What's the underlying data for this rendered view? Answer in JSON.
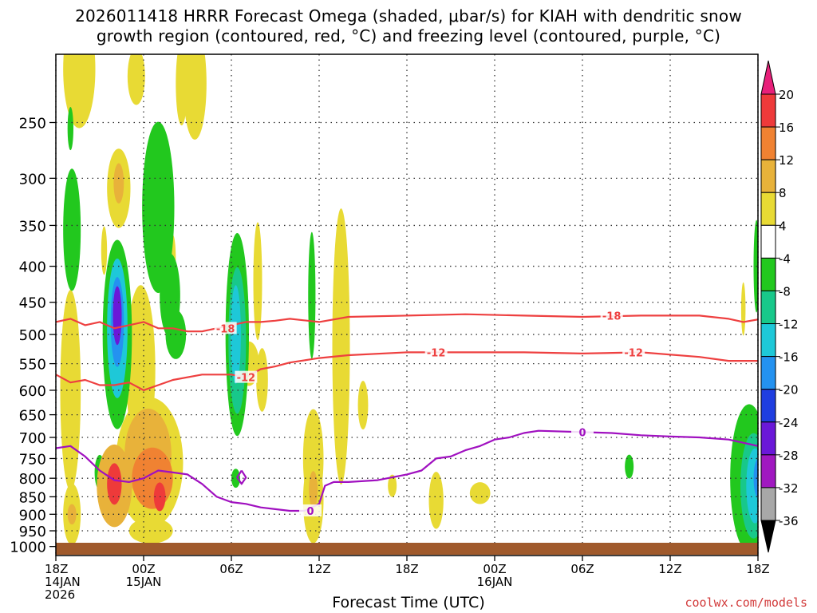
{
  "title_line1": "2026011418 HRRR Forecast Omega (shaded, μbar/s) for KIAH with dendritic snow",
  "title_line2": "growth region (contoured, red, °C) and freezing level (contoured, purple, °C)",
  "credit": "coolwx.com/models",
  "chart_data": {
    "type": "heatmap",
    "title": "2026011418 HRRR Forecast Omega (shaded, μbar/s) for KIAH with dendritic snow growth region (contoured, red, °C) and freezing level (contoured, purple, °C)",
    "xlabel": "Forecast Time (UTC)",
    "ylabel": "",
    "x_ticks": [
      {
        "hour": 0,
        "lines": [
          "18Z",
          "14JAN",
          "2026"
        ]
      },
      {
        "hour": 6,
        "lines": [
          "00Z",
          "15JAN"
        ]
      },
      {
        "hour": 12,
        "lines": [
          "06Z"
        ]
      },
      {
        "hour": 18,
        "lines": [
          "12Z"
        ]
      },
      {
        "hour": 24,
        "lines": [
          "18Z"
        ]
      },
      {
        "hour": 30,
        "lines": [
          "00Z",
          "16JAN"
        ]
      },
      {
        "hour": 36,
        "lines": [
          "06Z"
        ]
      },
      {
        "hour": 42,
        "lines": [
          "12Z"
        ]
      },
      {
        "hour": 48,
        "lines": [
          "18Z"
        ]
      }
    ],
    "x_range_hours": [
      0,
      48
    ],
    "y_ticks_hpa": [
      250,
      300,
      350,
      400,
      450,
      500,
      550,
      600,
      650,
      700,
      750,
      800,
      850,
      900,
      950,
      1000
    ],
    "y_range_hpa": [
      200,
      1030
    ],
    "colorbar": {
      "labels": [
        "20",
        "16",
        "12",
        "8",
        "4",
        "-4",
        "-8",
        "-12",
        "-16",
        "-20",
        "-24",
        "-28",
        "-32",
        "-36"
      ],
      "bins": [
        {
          "from": 20,
          "to": 99,
          "color": "#e8207a"
        },
        {
          "from": 16,
          "to": 20,
          "color": "#ee3a3a"
        },
        {
          "from": 12,
          "to": 16,
          "color": "#f08232"
        },
        {
          "from": 8,
          "to": 12,
          "color": "#e8b23a"
        },
        {
          "from": 4,
          "to": 8,
          "color": "#e8da34"
        },
        {
          "from": -4,
          "to": 4,
          "color": "#ffffff"
        },
        {
          "from": -8,
          "to": -4,
          "color": "#22c81e"
        },
        {
          "from": -12,
          "to": -8,
          "color": "#18c88a"
        },
        {
          "from": -16,
          "to": -12,
          "color": "#1ec8d8"
        },
        {
          "from": -20,
          "to": -16,
          "color": "#2492f0"
        },
        {
          "from": -24,
          "to": -20,
          "color": "#1f3ee0"
        },
        {
          "from": -28,
          "to": -24,
          "color": "#6a18d8"
        },
        {
          "from": -32,
          "to": -28,
          "color": "#a018c0"
        },
        {
          "from": -36,
          "to": -32,
          "color": "#a8a8a8"
        },
        {
          "from": -99,
          "to": -36,
          "color": "#000000"
        }
      ]
    },
    "omega_cells": [
      {
        "t": 1.6,
        "p": 210,
        "v": 5,
        "rx": 1.1,
        "rp": 40
      },
      {
        "t": 5.5,
        "p": 215,
        "v": 5,
        "rx": 0.6,
        "rp": 20
      },
      {
        "t": 1.0,
        "p": 255,
        "v": -5,
        "rx": 0.2,
        "rp": 18
      },
      {
        "t": 1.1,
        "p": 355,
        "v": -7,
        "rx": 0.6,
        "rp": 70
      },
      {
        "t": 4.3,
        "p": 310,
        "v": 6,
        "rx": 0.8,
        "rp": 40
      },
      {
        "t": 4.3,
        "p": 305,
        "v": 9,
        "rx": 0.35,
        "rp": 20
      },
      {
        "t": 7.0,
        "p": 330,
        "v": -6,
        "rx": 1.1,
        "rp": 90
      },
      {
        "t": 7.8,
        "p": 440,
        "v": -6,
        "rx": 0.7,
        "rp": 60
      },
      {
        "t": 8.2,
        "p": 500,
        "v": -6,
        "rx": 0.7,
        "rp": 40
      },
      {
        "t": 3.3,
        "p": 380,
        "v": 5,
        "rx": 0.2,
        "rp": 30
      },
      {
        "t": 9.5,
        "p": 220,
        "v": 5,
        "rx": 0.8,
        "rp": 40
      },
      {
        "t": 8.0,
        "p": 390,
        "v": 5,
        "rx": 0.2,
        "rp": 30
      },
      {
        "t": 4.2,
        "p": 500,
        "v": -8,
        "rx": 1.0,
        "rp": 150
      },
      {
        "t": 4.2,
        "p": 490,
        "v": -14,
        "rx": 0.7,
        "rp": 110
      },
      {
        "t": 4.2,
        "p": 480,
        "v": -20,
        "rx": 0.45,
        "rp": 70
      },
      {
        "t": 4.2,
        "p": 470,
        "v": -27,
        "rx": 0.3,
        "rp": 45
      },
      {
        "t": 1.0,
        "p": 600,
        "v": 6,
        "rx": 0.7,
        "rp": 190
      },
      {
        "t": 5.8,
        "p": 560,
        "v": 6,
        "rx": 1.0,
        "rp": 150
      },
      {
        "t": 6.4,
        "p": 760,
        "v": 7,
        "rx": 2.3,
        "rp": 160
      },
      {
        "t": 6.3,
        "p": 740,
        "v": 11,
        "rx": 1.6,
        "rp": 110
      },
      {
        "t": 6.6,
        "p": 800,
        "v": 14,
        "rx": 1.4,
        "rp": 80
      },
      {
        "t": 4.0,
        "p": 820,
        "v": 10,
        "rx": 1.2,
        "rp": 110
      },
      {
        "t": 4.0,
        "p": 815,
        "v": 18,
        "rx": 0.5,
        "rp": 55
      },
      {
        "t": 7.1,
        "p": 850,
        "v": 17,
        "rx": 0.4,
        "rp": 40
      },
      {
        "t": 3.0,
        "p": 785,
        "v": -8,
        "rx": 0.35,
        "rp": 45
      },
      {
        "t": 1.1,
        "p": 900,
        "v": 6,
        "rx": 0.6,
        "rp": 90
      },
      {
        "t": 1.1,
        "p": 900,
        "v": 10,
        "rx": 0.3,
        "rp": 30
      },
      {
        "t": 6.5,
        "p": 950,
        "v": 5,
        "rx": 1.5,
        "rp": 40
      },
      {
        "t": 12.4,
        "p": 500,
        "v": -6,
        "rx": 0.8,
        "rp": 160
      },
      {
        "t": 12.4,
        "p": 510,
        "v": -11,
        "rx": 0.6,
        "rp": 120
      },
      {
        "t": 12.3,
        "p": 500,
        "v": -15,
        "rx": 0.35,
        "rp": 80
      },
      {
        "t": 13.2,
        "p": 550,
        "v": 5,
        "rx": 0.7,
        "rp": 40
      },
      {
        "t": 14.1,
        "p": 580,
        "v": 5,
        "rx": 0.4,
        "rp": 60
      },
      {
        "t": 13.8,
        "p": 420,
        "v": 5,
        "rx": 0.3,
        "rp": 80
      },
      {
        "t": 12.3,
        "p": 800,
        "v": -5,
        "rx": 0.3,
        "rp": 25
      },
      {
        "t": 8.6,
        "p": 220,
        "v": 5,
        "rx": 0.4,
        "rp": 30
      },
      {
        "t": 17.5,
        "p": 440,
        "v": -6,
        "rx": 0.25,
        "rp": 90
      },
      {
        "t": 19.5,
        "p": 520,
        "v": 5,
        "rx": 0.6,
        "rp": 220
      },
      {
        "t": 17.6,
        "p": 750,
        "v": 5,
        "rx": 0.7,
        "rp": 120
      },
      {
        "t": 17.6,
        "p": 860,
        "v": 5,
        "rx": 0.7,
        "rp": 120
      },
      {
        "t": 17.6,
        "p": 830,
        "v": 10,
        "rx": 0.3,
        "rp": 50
      },
      {
        "t": 21.0,
        "p": 630,
        "v": 5,
        "rx": 0.35,
        "rp": 50
      },
      {
        "t": 23.0,
        "p": 820,
        "v": 5,
        "rx": 0.3,
        "rp": 30
      },
      {
        "t": 26.0,
        "p": 860,
        "v": 5,
        "rx": 0.5,
        "rp": 80
      },
      {
        "t": 29.0,
        "p": 840,
        "v": 5,
        "rx": 0.7,
        "rp": 30
      },
      {
        "t": 39.2,
        "p": 770,
        "v": -6,
        "rx": 0.3,
        "rp": 30
      },
      {
        "t": 47.4,
        "p": 800,
        "v": -6,
        "rx": 1.3,
        "rp": 190
      },
      {
        "t": 47.7,
        "p": 820,
        "v": -11,
        "rx": 0.9,
        "rp": 140
      },
      {
        "t": 47.8,
        "p": 820,
        "v": -15,
        "rx": 0.6,
        "rp": 100
      },
      {
        "t": 48.0,
        "p": 800,
        "v": -20,
        "rx": 0.3,
        "rp": 50
      },
      {
        "t": 47.0,
        "p": 460,
        "v": 5,
        "rx": 0.15,
        "rp": 40
      },
      {
        "t": 47.9,
        "p": 400,
        "v": -6,
        "rx": 0.2,
        "rp": 60
      }
    ],
    "contours": [
      {
        "name": "dendritic-minus18",
        "label": "-18",
        "color": "#ee4040",
        "points": [
          [
            0,
            480
          ],
          [
            1,
            475
          ],
          [
            2,
            485
          ],
          [
            3,
            480
          ],
          [
            4,
            490
          ],
          [
            5,
            485
          ],
          [
            6,
            480
          ],
          [
            7,
            490
          ],
          [
            8,
            490
          ],
          [
            9,
            495
          ],
          [
            10,
            495
          ],
          [
            11,
            490
          ],
          [
            12,
            485
          ],
          [
            13,
            480
          ],
          [
            14,
            480
          ],
          [
            15,
            478
          ],
          [
            16,
            475
          ],
          [
            18,
            480
          ],
          [
            20,
            472
          ],
          [
            24,
            470
          ],
          [
            28,
            468
          ],
          [
            32,
            470
          ],
          [
            36,
            472
          ],
          [
            40,
            470
          ],
          [
            44,
            470
          ],
          [
            46,
            475
          ],
          [
            47,
            480
          ],
          [
            48,
            476
          ]
        ],
        "label_at": [
          {
            "t": 11.6,
            "p": 490
          },
          {
            "t": 38.0,
            "p": 470
          }
        ]
      },
      {
        "name": "dendritic-minus12",
        "label": "-12",
        "color": "#ee4040",
        "points": [
          [
            0,
            570
          ],
          [
            1,
            585
          ],
          [
            2,
            580
          ],
          [
            3,
            590
          ],
          [
            4,
            590
          ],
          [
            5,
            585
          ],
          [
            6,
            600
          ],
          [
            7,
            590
          ],
          [
            8,
            580
          ],
          [
            10,
            570
          ],
          [
            12,
            570
          ],
          [
            13,
            575
          ],
          [
            14,
            560
          ],
          [
            15,
            555
          ],
          [
            16,
            548
          ],
          [
            18,
            540
          ],
          [
            20,
            535
          ],
          [
            24,
            530
          ],
          [
            28,
            530
          ],
          [
            32,
            530
          ],
          [
            36,
            532
          ],
          [
            40,
            530
          ],
          [
            44,
            538
          ],
          [
            46,
            545
          ],
          [
            48,
            545
          ]
        ],
        "label_at": [
          {
            "t": 13.0,
            "p": 575
          },
          {
            "t": 26.0,
            "p": 530
          },
          {
            "t": 39.5,
            "p": 530
          }
        ]
      },
      {
        "name": "freezing-level-0",
        "label": "0",
        "color": "#a010c0",
        "points": [
          [
            0,
            725
          ],
          [
            1,
            720
          ],
          [
            2,
            745
          ],
          [
            3,
            780
          ],
          [
            4,
            805
          ],
          [
            5,
            810
          ],
          [
            6,
            800
          ],
          [
            7,
            780
          ],
          [
            8,
            785
          ],
          [
            9,
            790
          ],
          [
            10,
            815
          ],
          [
            11,
            850
          ],
          [
            12,
            865
          ],
          [
            13,
            870
          ],
          [
            14,
            880
          ],
          [
            15,
            885
          ],
          [
            16,
            890
          ],
          [
            17,
            890
          ],
          [
            18,
            870
          ],
          [
            18.4,
            820
          ],
          [
            19,
            810
          ],
          [
            20,
            810
          ],
          [
            22,
            805
          ],
          [
            24,
            790
          ],
          [
            25,
            780
          ],
          [
            26,
            750
          ],
          [
            27,
            745
          ],
          [
            28,
            730
          ],
          [
            29,
            720
          ],
          [
            30,
            705
          ],
          [
            31,
            700
          ],
          [
            32,
            690
          ],
          [
            33,
            685
          ],
          [
            36,
            688
          ],
          [
            38,
            690
          ],
          [
            40,
            695
          ],
          [
            42,
            698
          ],
          [
            44,
            700
          ],
          [
            46,
            705
          ],
          [
            48,
            720
          ]
        ],
        "label_at": [
          {
            "t": 17.4,
            "p": 890
          },
          {
            "t": 36.0,
            "p": 688
          }
        ]
      },
      {
        "name": "freezing-level-diamond",
        "label": "",
        "color": "#a010c0",
        "points": [
          [
            12.7,
            780
          ],
          [
            13.0,
            798
          ],
          [
            12.7,
            815
          ],
          [
            12.4,
            798
          ],
          [
            12.7,
            780
          ]
        ],
        "label_at": []
      }
    ],
    "terrain_color": "#a05a2c"
  }
}
